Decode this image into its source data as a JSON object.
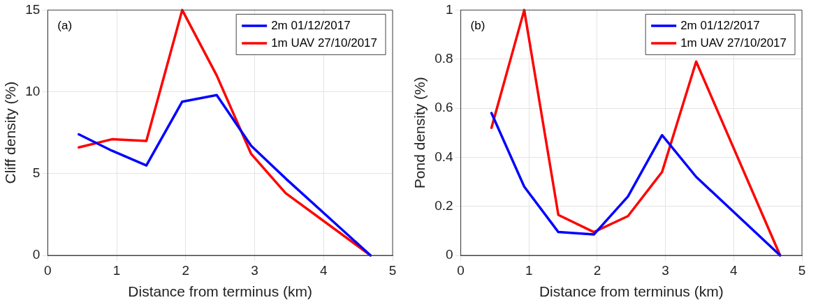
{
  "chart_data": [
    {
      "type": "line",
      "xlabel": "Distance from terminus (km)",
      "ylabel": "Cliff density (%)",
      "annotations": [
        "(a)"
      ],
      "x": [
        0.45,
        0.93,
        1.43,
        1.95,
        2.45,
        2.95,
        3.45,
        4.68
      ],
      "xlim": [
        0,
        5
      ],
      "xticks": [
        0,
        1,
        2,
        3,
        4,
        5
      ],
      "ylim": [
        0,
        15
      ],
      "yticks": [
        0,
        5,
        10,
        15
      ],
      "grid": true,
      "legend": "top right",
      "marker": "none",
      "line_style": "solid",
      "series": [
        {
          "name": "2m 01/12/2017",
          "color": "#0000ff",
          "values": [
            7.4,
            6.4,
            5.5,
            9.4,
            9.8,
            6.7,
            4.7,
            0
          ]
        },
        {
          "name": "1m UAV 27/10/2017",
          "color": "#ff0000",
          "values": [
            6.6,
            7.1,
            7.0,
            15,
            11.0,
            6.2,
            3.8,
            0
          ]
        }
      ]
    },
    {
      "type": "line",
      "xlabel": "Distance from terminus (km)",
      "ylabel": "Pond density (%)",
      "annotations": [
        "(b)"
      ],
      "x": [
        0.45,
        0.93,
        1.43,
        1.95,
        2.45,
        2.95,
        3.45,
        4.68
      ],
      "xlim": [
        0,
        5
      ],
      "xticks": [
        0,
        1,
        2,
        3,
        4,
        5
      ],
      "ylim": [
        0,
        1
      ],
      "yticks": [
        0,
        0.2,
        0.4,
        0.6,
        0.8,
        1
      ],
      "grid": true,
      "legend": "top right",
      "marker": "none",
      "line_style": "solid",
      "series": [
        {
          "name": "2m 01/12/2017",
          "color": "#0000ff",
          "values": [
            0.58,
            0.28,
            0.095,
            0.085,
            0.24,
            0.49,
            0.32,
            0
          ]
        },
        {
          "name": "1m UAV 27/10/2017",
          "color": "#ff0000",
          "values": [
            0.52,
            1.0,
            0.165,
            0.095,
            0.16,
            0.34,
            0.79,
            0
          ]
        }
      ]
    }
  ]
}
